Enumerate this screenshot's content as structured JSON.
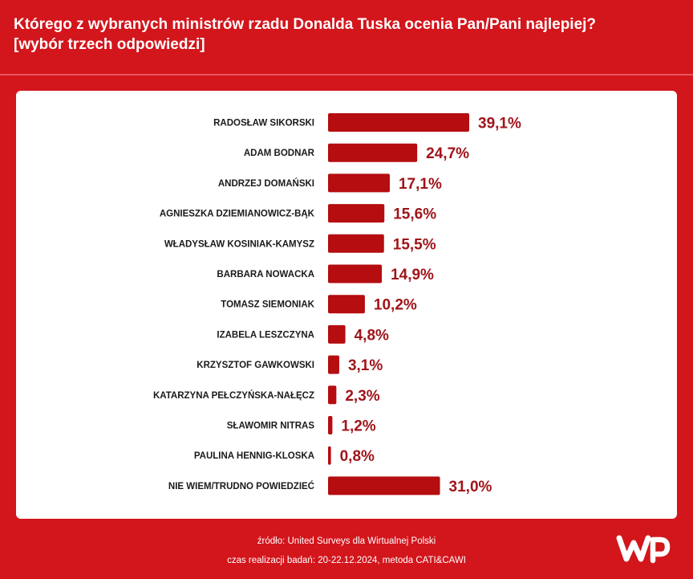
{
  "header": {
    "title_line1": "Którego z wybranych ministrów rzadu Donalda Tuska ocenia Pan/Pani najlepiej?",
    "title_line2": "[wybór trzech odpowiedzi]"
  },
  "footer": {
    "source": "źródło: United Surveys dla Wirtualnej Polski",
    "meta": "czas realizacji badań: 20-22.12.2024, metoda CATI&CAWI"
  },
  "brand": {
    "logo_icon": "wp-logo-icon",
    "background": "#d3151c",
    "bar_color": "#b50d10",
    "value_color": "#a01419"
  },
  "chart_data": {
    "type": "bar",
    "orientation": "horizontal",
    "title": "Którego z wybranych ministrów rzadu Donalda Tuska ocenia Pan/Pani najlepiej?",
    "subtitle": "[wybór trzech odpowiedzi]",
    "unit": "%",
    "categories": [
      "RADOSŁAW SIKORSKI",
      "ADAM BODNAR",
      "ANDRZEJ DOMAŃSKI",
      "AGNIESZKA DZIEMIANOWICZ-BĄK",
      "WŁADYSŁAW KOSINIAK-KAMYSZ",
      "BARBARA NOWACKA",
      "TOMASZ SIEMONIAK",
      "IZABELA LESZCZYNA",
      "KRZYSZTOF GAWKOWSKI",
      "KATARZYNA PEŁCZYŃSKA-NAŁĘCZ",
      "SŁAWOMIR NITRAS",
      "PAULINA HENNIG-KLOSKA",
      "NIE WIEM/TRUDNO POWIEDZIEĆ"
    ],
    "values": [
      39.1,
      24.7,
      17.1,
      15.6,
      15.5,
      14.9,
      10.2,
      4.8,
      3.1,
      2.3,
      1.2,
      0.8,
      31.0
    ],
    "value_labels": [
      "39,1%",
      "24,7%",
      "17,1%",
      "15,6%",
      "15,5%",
      "14,9%",
      "10,2%",
      "4,8%",
      "3,1%",
      "2,3%",
      "1,2%",
      "0,8%",
      "31,0%"
    ],
    "xlim": [
      0,
      39.1
    ],
    "grid": false,
    "legend": "none"
  }
}
